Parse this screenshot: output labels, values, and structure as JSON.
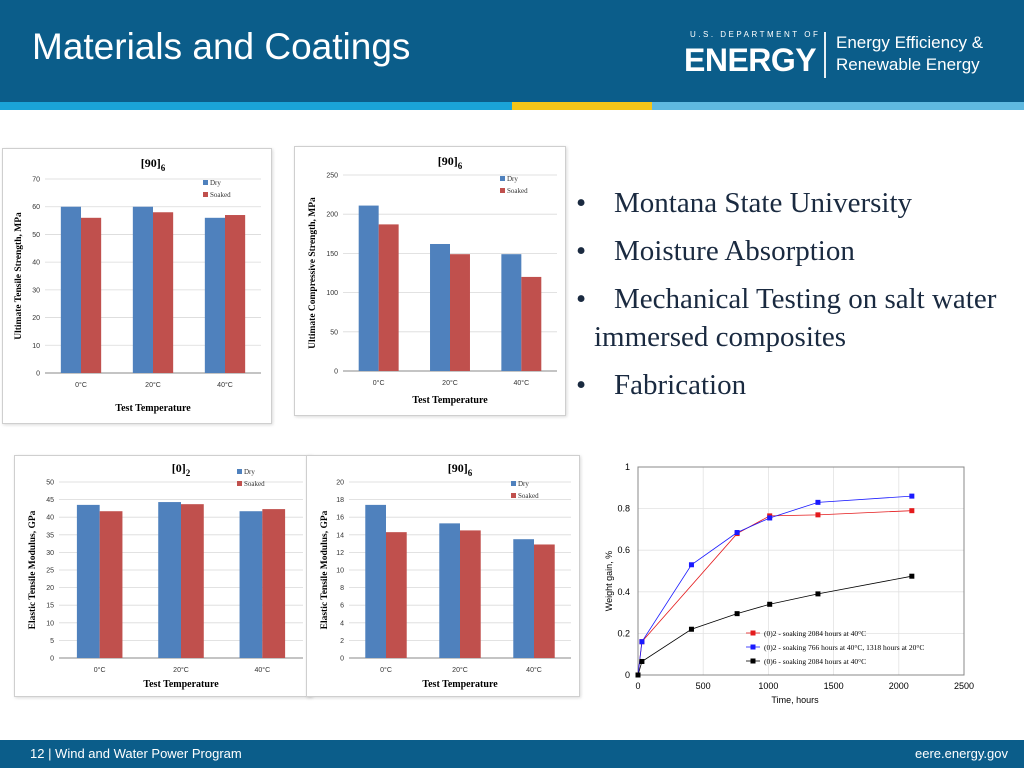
{
  "header": {
    "title": "Materials and Coatings",
    "doe_small": "U.S. DEPARTMENT OF",
    "doe_big": "ENERGY",
    "eere_line1": "Energy Efficiency &",
    "eere_line2": "Renewable Energy"
  },
  "bullets": [
    "Montana State University",
    "Moisture Absorption",
    "Mechanical Testing on salt water immersed composites",
    "Fabrication"
  ],
  "footer": {
    "left": "12 | Wind and Water Power Program",
    "right": "eere.energy.gov"
  },
  "colors": {
    "header_bg": "#0b5d8a",
    "dry": "#4f81bd",
    "soaked": "#c0504d"
  },
  "chart_data": [
    {
      "type": "bar",
      "title": "[90]6",
      "xlabel": "Test Temperature",
      "ylabel": "Ultimate Tensile Strength, MPa",
      "categories": [
        "0°C",
        "20°C",
        "40°C"
      ],
      "ylim": [
        0,
        70
      ],
      "yticks": [
        0,
        10,
        20,
        30,
        40,
        50,
        60,
        70
      ],
      "series": [
        {
          "name": "Dry",
          "values": [
            60,
            60,
            56
          ]
        },
        {
          "name": "Soaked",
          "values": [
            56,
            58,
            57
          ]
        }
      ]
    },
    {
      "type": "bar",
      "title": "[90]6",
      "xlabel": "Test Temperature",
      "ylabel": "Ultimate Compressive Strength, MPa",
      "categories": [
        "0°C",
        "20°C",
        "40°C"
      ],
      "ylim": [
        0,
        250
      ],
      "yticks": [
        0,
        50,
        100,
        150,
        200,
        250
      ],
      "series": [
        {
          "name": "Dry",
          "values": [
            211,
            162,
            149
          ]
        },
        {
          "name": "Soaked",
          "values": [
            187,
            149,
            120
          ]
        }
      ]
    },
    {
      "type": "bar",
      "title": "[0]2",
      "xlabel": "Test Temperature",
      "ylabel": "Elastic Tensile Modulus, GPa",
      "categories": [
        "0°C",
        "20°C",
        "40°C"
      ],
      "ylim": [
        0,
        50
      ],
      "yticks": [
        0,
        5,
        10,
        15,
        20,
        25,
        30,
        35,
        40,
        45,
        50
      ],
      "series": [
        {
          "name": "Dry",
          "values": [
            43.5,
            44.3,
            41.7
          ]
        },
        {
          "name": "Soaked",
          "values": [
            41.7,
            43.7,
            42.3
          ]
        }
      ]
    },
    {
      "type": "bar",
      "title": "[90]6",
      "xlabel": "Test Temperature",
      "ylabel": "Elastic Tensile Modulus, GPa",
      "categories": [
        "0°C",
        "20°C",
        "40°C"
      ],
      "ylim": [
        0,
        20
      ],
      "yticks": [
        0,
        2,
        4,
        6,
        8,
        10,
        12,
        14,
        16,
        18,
        20
      ],
      "series": [
        {
          "name": "Dry",
          "values": [
            17.4,
            15.3,
            13.5
          ]
        },
        {
          "name": "Soaked",
          "values": [
            14.3,
            14.5,
            12.9
          ]
        }
      ]
    },
    {
      "type": "line",
      "xlabel": "Time, hours",
      "ylabel": "Weight gain, %",
      "xlim": [
        0,
        2500
      ],
      "ylim": [
        0,
        1
      ],
      "xticks": [
        0,
        500,
        1000,
        1500,
        2000,
        2500
      ],
      "yticks": [
        0,
        0.2,
        0.4,
        0.6,
        0.8,
        1
      ],
      "series": [
        {
          "name": "(0)2 - soaking 2084 hours at 40°C",
          "color": "#e41a1c",
          "x": [
            0,
            30,
            760,
            1010,
            1380,
            2100
          ],
          "y": [
            0,
            0.16,
            0.68,
            0.765,
            0.77,
            0.79
          ]
        },
        {
          "name": "(0)2 - soaking 766 hours at 40°C, 1318 hours at 20°C",
          "color": "#1a1aff",
          "x": [
            0,
            30,
            410,
            760,
            1010,
            1380,
            2100
          ],
          "y": [
            0,
            0.16,
            0.53,
            0.685,
            0.755,
            0.83,
            0.86
          ]
        },
        {
          "name": "(0)6 - soaking 2084 hours at 40°C",
          "color": "#000000",
          "x": [
            0,
            30,
            410,
            760,
            1010,
            1380,
            2100
          ],
          "y": [
            0,
            0.065,
            0.22,
            0.295,
            0.34,
            0.39,
            0.475
          ]
        }
      ]
    }
  ]
}
